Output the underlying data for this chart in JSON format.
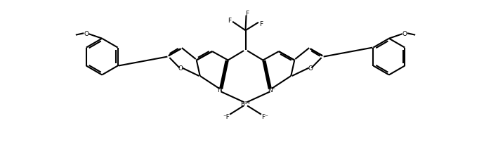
{
  "background_color": "#ffffff",
  "line_color": "#000000",
  "line_width": 1.5,
  "fig_width": 6.99,
  "fig_height": 2.03,
  "dpi": 100,
  "xlim": [
    0,
    140
  ],
  "ylim": [
    0,
    40
  ]
}
